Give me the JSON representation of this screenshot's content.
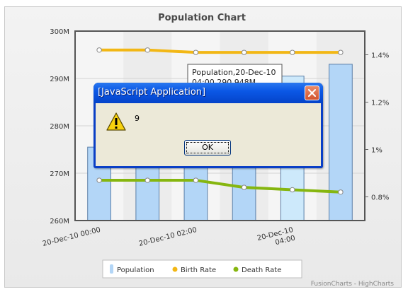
{
  "colors": {
    "population": "#b3d6f7",
    "population_highlight": "#cde9fb",
    "birth_rate": "#f2b715",
    "death_rate": "#86b60f"
  },
  "chart_data": {
    "type": "bar",
    "title": "Population Chart",
    "credit": "FusionCharts - HighCharts",
    "x_tick_labels": [
      "20-Dec-10 00:00",
      "20-Dec-10 02:00",
      "20-Dec-10\n04:00"
    ],
    "y_left": {
      "ticks": [
        "260M",
        "270M",
        "280M",
        "290M",
        "300M"
      ],
      "ylim": [
        260,
        300
      ]
    },
    "y_right": {
      "ticks": [
        "0.8%",
        "1%",
        "1.2%",
        "1.4%"
      ],
      "ylim": [
        0.7,
        1.5
      ]
    },
    "series": [
      {
        "name": "Population",
        "type": "bar",
        "axis": "left",
        "values": [
          275.5,
          279,
          282,
          286,
          290.5,
          293
        ]
      },
      {
        "name": "Birth Rate",
        "type": "line",
        "axis": "right",
        "values": [
          1.42,
          1.42,
          1.41,
          1.41,
          1.41,
          1.41
        ]
      },
      {
        "name": "Death Rate",
        "type": "line",
        "axis": "right",
        "values": [
          0.87,
          0.87,
          0.87,
          0.84,
          0.83,
          0.82
        ]
      }
    ],
    "legend": [
      "Population",
      "Birth Rate",
      "Death Rate"
    ],
    "legend_position": "bottom",
    "tooltip": {
      "line1": "Population,20-Dec-10",
      "line2": "04:00,290,948M"
    }
  },
  "dialog": {
    "title": "[JavaScript Application]",
    "message": "9",
    "ok_label": "OK",
    "icon": "warning-icon",
    "close_icon": "close-icon"
  }
}
